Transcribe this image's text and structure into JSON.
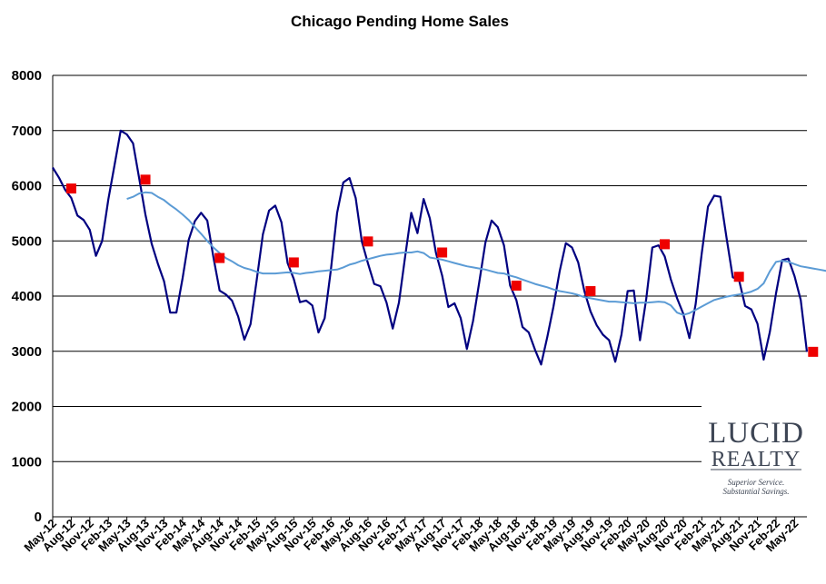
{
  "chart_data": {
    "type": "line",
    "title": "Chicago Pending Home Sales",
    "xlabel": "",
    "ylabel": "",
    "ylim": [
      0,
      8000
    ],
    "yticks": [
      0,
      1000,
      2000,
      3000,
      4000,
      5000,
      6000,
      7000,
      8000
    ],
    "grid": true,
    "legend": "none",
    "colors": {
      "monthly": "#000080",
      "moving_average": "#5b9bd5",
      "year_over_year_markers": "#ee0000",
      "gridline": "#000000"
    },
    "tick_labels": [
      "May-12",
      "Aug-12",
      "Nov-12",
      "Feb-13",
      "May-13",
      "Aug-13",
      "Nov-13",
      "Feb-14",
      "May-14",
      "Aug-14",
      "Nov-14",
      "Feb-15",
      "May-15",
      "Aug-15",
      "Nov-15",
      "Feb-16",
      "May-16",
      "Aug-16",
      "Nov-16",
      "Feb-17",
      "May-17",
      "Aug-17",
      "Nov-17",
      "Feb-18",
      "May-18",
      "Aug-18",
      "Nov-18",
      "Feb-19",
      "May-19",
      "Aug-19",
      "Nov-19",
      "Feb-20",
      "May-20",
      "Aug-20",
      "Nov-20",
      "Feb-21",
      "May-21",
      "Aug-21",
      "Nov-21",
      "Feb-22",
      "May-22"
    ],
    "series": [
      {
        "style": "line",
        "values": [
          6330,
          6150,
          5930,
          5780,
          5460,
          5380,
          5200,
          4730,
          5000,
          5750,
          6370,
          7000,
          6930,
          6770,
          6130,
          5480,
          4950,
          4590,
          4270,
          3700,
          3700,
          4320,
          5020,
          5360,
          5510,
          5370,
          4700,
          4100,
          4030,
          3920,
          3630,
          3210,
          3490,
          4290,
          5120,
          5550,
          5640,
          5340,
          4600,
          4310,
          3890,
          3920,
          3830,
          3340,
          3600,
          4470,
          5510,
          6060,
          6140,
          5780,
          4990,
          4590,
          4220,
          4180,
          3880,
          3410,
          3880,
          4710,
          5510,
          5140,
          5760,
          5410,
          4780,
          4370,
          3800,
          3870,
          3600,
          3040,
          3550,
          4250,
          4970,
          5370,
          5250,
          4920,
          4190,
          3930,
          3440,
          3340,
          3030,
          2760,
          3260,
          3810,
          4450,
          4960,
          4880,
          4610,
          4090,
          3720,
          3470,
          3300,
          3200,
          2810,
          3300,
          4090,
          4100,
          3200,
          3940,
          4880,
          4920,
          4720,
          4300,
          3960,
          3680,
          3240,
          3850,
          4780,
          5620,
          5820,
          5800,
          5050,
          4340,
          4300,
          3820,
          3760,
          3500,
          2850,
          3350,
          4050,
          4650,
          4680,
          4360,
          3930,
          2990
        ]
      },
      {
        "style": "line",
        "start_index": 12,
        "values": [
          5760,
          5800,
          5860,
          5880,
          5870,
          5800,
          5740,
          5650,
          5570,
          5480,
          5380,
          5250,
          5130,
          5000,
          4880,
          4780,
          4690,
          4630,
          4560,
          4510,
          4480,
          4440,
          4410,
          4410,
          4410,
          4420,
          4430,
          4420,
          4400,
          4420,
          4430,
          4450,
          4460,
          4470,
          4480,
          4520,
          4570,
          4600,
          4640,
          4670,
          4700,
          4730,
          4750,
          4760,
          4780,
          4790,
          4790,
          4810,
          4780,
          4700,
          4680,
          4660,
          4630,
          4600,
          4570,
          4540,
          4520,
          4500,
          4480,
          4450,
          4420,
          4410,
          4370,
          4340,
          4300,
          4260,
          4220,
          4190,
          4160,
          4120,
          4090,
          4070,
          4050,
          4020,
          3980,
          3960,
          3940,
          3920,
          3900,
          3900,
          3890,
          3880,
          3870,
          3880,
          3880,
          3890,
          3900,
          3890,
          3830,
          3700,
          3660,
          3690,
          3750,
          3810,
          3870,
          3930,
          3960,
          3990,
          4010,
          4030,
          4050,
          4080,
          4130,
          4230,
          4450,
          4620,
          4640,
          4620,
          4580,
          4540,
          4520,
          4500,
          4480,
          4460,
          4430,
          4400,
          4370,
          4310,
          4230,
          4120,
          4000,
          3870
        ]
      },
      {
        "style": "markers",
        "points": [
          {
            "index": 3,
            "value": 5950
          },
          {
            "index": 15,
            "value": 6110
          },
          {
            "index": 27,
            "value": 4690
          },
          {
            "index": 39,
            "value": 4610
          },
          {
            "index": 51,
            "value": 4990
          },
          {
            "index": 63,
            "value": 4790
          },
          {
            "index": 75,
            "value": 4190
          },
          {
            "index": 87,
            "value": 4090
          },
          {
            "index": 99,
            "value": 4940
          },
          {
            "index": 111,
            "value": 4350
          },
          {
            "index": 123,
            "value": 2990
          }
        ]
      }
    ]
  },
  "logo": {
    "name_line1": "LUCID",
    "name_line2": "REALTY",
    "tagline_line1": "Superior Service.",
    "tagline_line2": "Substantial Savings."
  }
}
